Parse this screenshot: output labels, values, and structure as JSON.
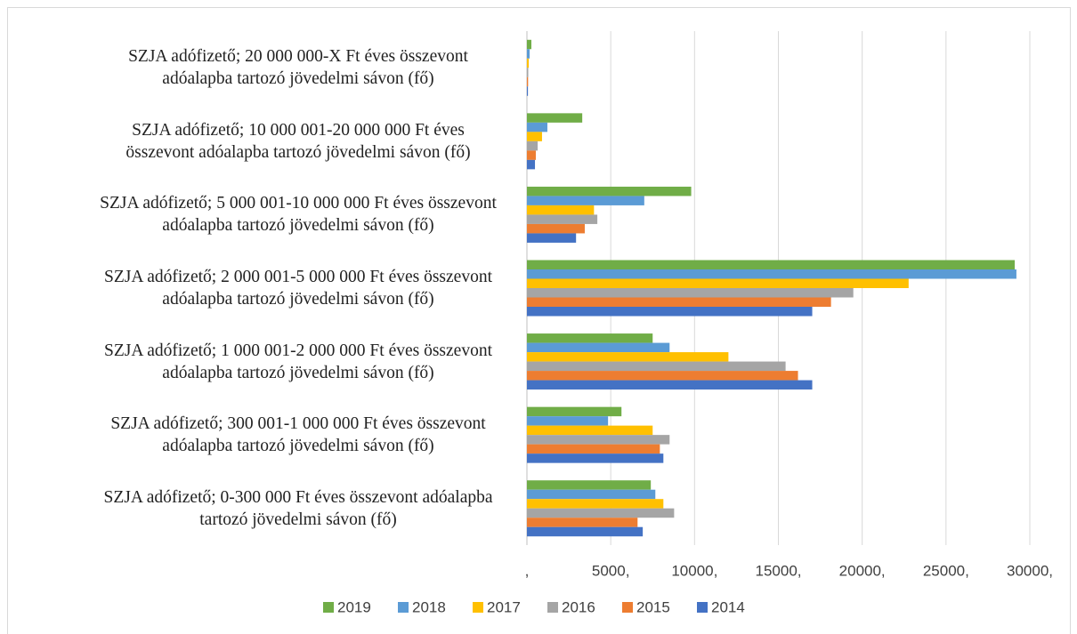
{
  "chart_data": {
    "type": "barh",
    "categories": [
      "SZJA adófizető; 0-300 000 Ft éves összevont adóalapba\ntartozó jövedelmi sávon (fő)",
      "SZJA adófizető; 300 001-1 000 000 Ft éves összevont\nadóalapba tartozó jövedelmi sávon (fő)",
      "SZJA adófizető; 1 000 001-2 000 000 Ft éves összevont\nadóalapba tartozó jövedelmi sávon (fő)",
      "SZJA adófizető; 2 000 001-5 000 000 Ft éves összevont\nadóalapba tartozó jövedelmi sávon (fő)",
      "SZJA adófizető; 5 000 001-10 000 000 Ft éves összevont\nadóalapba tartozó jövedelmi sávon (fő)",
      "SZJA adófizető; 10 000 001-20 000 000 Ft éves\nösszevont adóalapba tartozó jövedelmi sávon (fő)",
      "SZJA adófizető; 20 000 000-X Ft éves összevont\nadóalapba tartozó jövedelmi sávon (fő)"
    ],
    "series": [
      {
        "name": "2019",
        "color": "#70ad47",
        "values": [
          7390,
          5640,
          7500,
          29100,
          9800,
          3300,
          265
        ]
      },
      {
        "name": "2018",
        "color": "#5b9bd5",
        "values": [
          7660,
          4840,
          8510,
          29200,
          7000,
          1220,
          160
        ]
      },
      {
        "name": "2017",
        "color": "#ffc000",
        "values": [
          8140,
          7500,
          12020,
          22770,
          4000,
          900,
          110
        ]
      },
      {
        "name": "2016",
        "color": "#a5a5a5",
        "values": [
          8780,
          8510,
          15430,
          19470,
          4200,
          640,
          80
        ]
      },
      {
        "name": "2015",
        "color": "#ed7d31",
        "values": [
          6600,
          7930,
          16170,
          18140,
          3450,
          530,
          70
        ]
      },
      {
        "name": "2014",
        "color": "#4472c4",
        "values": [
          6910,
          8140,
          17020,
          17020,
          2930,
          480,
          60
        ]
      }
    ],
    "xlim": [
      0,
      30000
    ],
    "xticks": [
      {
        "value": 0,
        "label": ","
      },
      {
        "value": 5000,
        "label": "5000,"
      },
      {
        "value": 10000,
        "label": "10000,"
      },
      {
        "value": 15000,
        "label": "15000,"
      },
      {
        "value": 20000,
        "label": "20000,"
      },
      {
        "value": 25000,
        "label": "25000,"
      },
      {
        "value": 30000,
        "label": "30000,"
      }
    ],
    "grid": true,
    "legend": "bottom"
  }
}
